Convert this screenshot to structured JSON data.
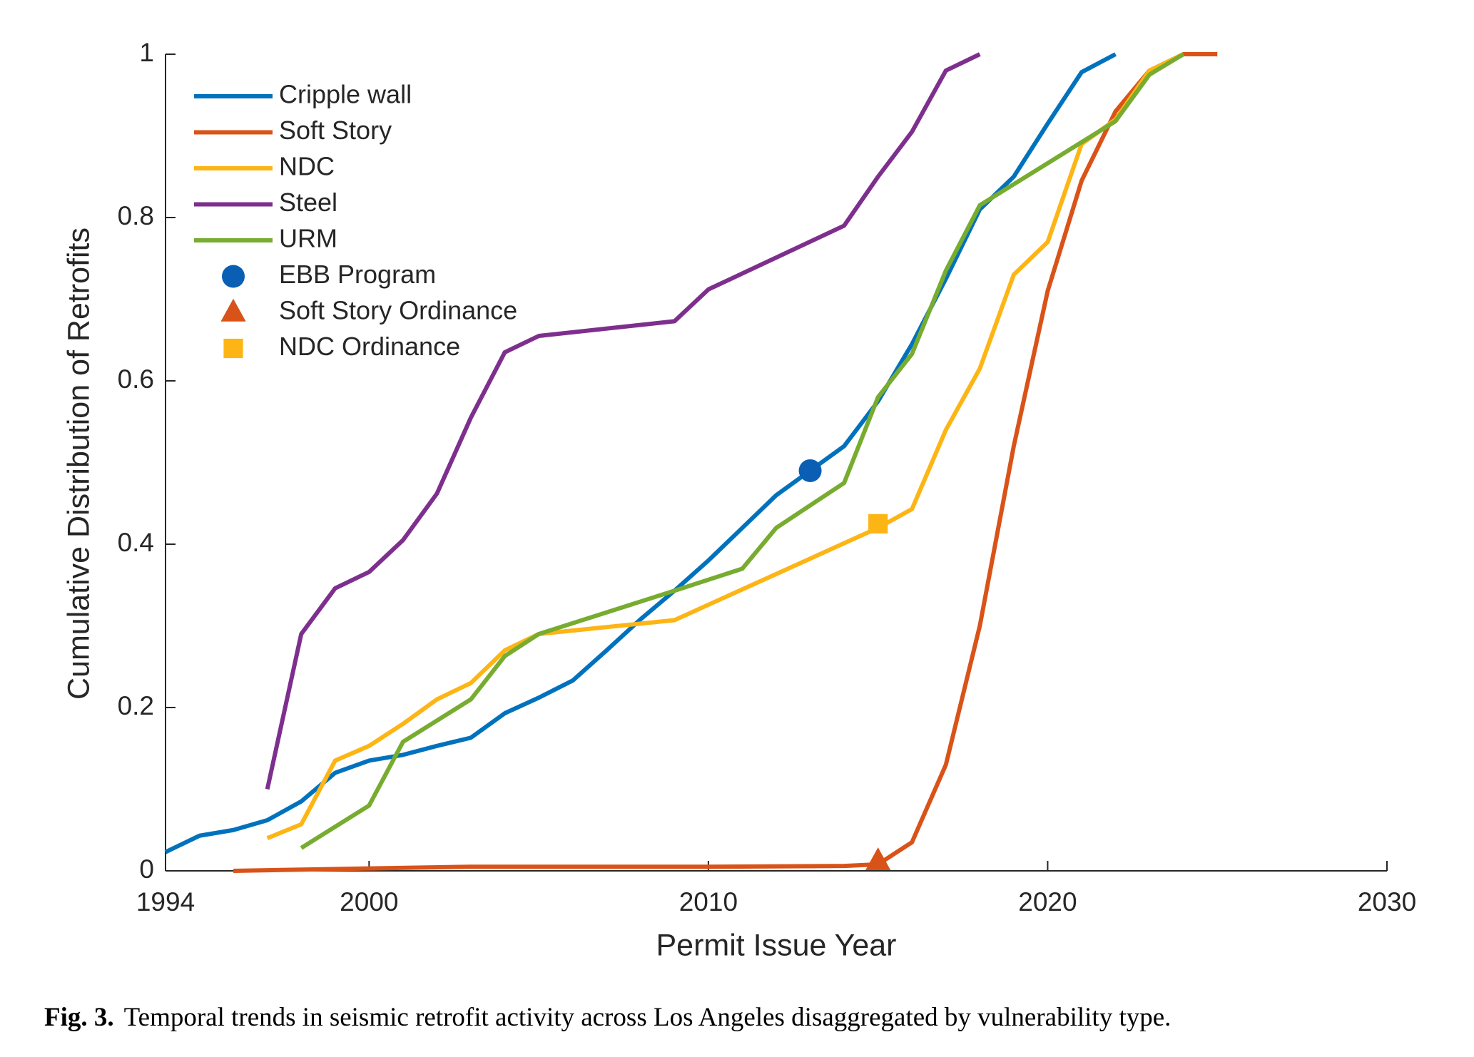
{
  "chart_data": {
    "type": "line",
    "xlabel": "Permit Issue Year",
    "ylabel": "Cumulative Distribution of Retrofits",
    "caption_label": "Fig. 3.",
    "caption": "Temporal trends in seismic retrofit activity across Los Angeles disaggregated by vulnerability type.",
    "xlim": [
      1994,
      2030
    ],
    "xticks": [
      1994,
      2000,
      2010,
      2020,
      2030
    ],
    "ylim": [
      0,
      1
    ],
    "yticks": [
      0,
      0.2,
      0.4,
      0.6,
      0.8,
      1
    ],
    "grid": false,
    "legend": "upper left",
    "series": [
      {
        "name": "Cripple wall",
        "color": "#0072bd",
        "marker": "line",
        "x": [
          1994,
          1995,
          1996,
          1997,
          1998,
          1999,
          2000,
          2001,
          2002,
          2003,
          2004,
          2005,
          2006,
          2007,
          2008,
          2009,
          2010,
          2011,
          2012,
          2013,
          2014,
          2015,
          2016,
          2017,
          2018,
          2019,
          2020,
          2021,
          2022
        ],
        "values": [
          0.023,
          0.043,
          0.05,
          0.062,
          0.085,
          0.12,
          0.135,
          0.142,
          0.153,
          0.163,
          0.193,
          0.212,
          0.233,
          0.27,
          0.308,
          0.343,
          0.38,
          0.42,
          0.46,
          0.49,
          0.52,
          0.575,
          0.645,
          0.725,
          0.81,
          0.85,
          0.915,
          0.978,
          1.0
        ]
      },
      {
        "name": "Soft Story",
        "color": "#d95319",
        "marker": "line",
        "x": [
          1996,
          2000,
          2003,
          2010,
          2014,
          2015,
          2016,
          2017,
          2018,
          2019,
          2020,
          2021,
          2022,
          2023,
          2024,
          2025
        ],
        "values": [
          0,
          0.003,
          0.005,
          0.005,
          0.006,
          0.008,
          0.035,
          0.13,
          0.3,
          0.52,
          0.71,
          0.845,
          0.93,
          0.98,
          1.0,
          1.0
        ]
      },
      {
        "name": "NDC",
        "color": "#fdb515",
        "marker": "line",
        "x": [
          1997,
          1998,
          1999,
          2000,
          2001,
          2002,
          2003,
          2004,
          2005,
          2009,
          2015,
          2016,
          2017,
          2018,
          2019,
          2020,
          2021,
          2022,
          2023,
          2024
        ],
        "values": [
          0.04,
          0.057,
          0.135,
          0.153,
          0.18,
          0.21,
          0.23,
          0.27,
          0.29,
          0.307,
          0.42,
          0.443,
          0.54,
          0.615,
          0.73,
          0.77,
          0.89,
          0.92,
          0.98,
          1.0
        ]
      },
      {
        "name": "Steel",
        "color": "#7e2f8e",
        "marker": "line",
        "x": [
          1997,
          1998,
          1999,
          2000,
          2001,
          2002,
          2003,
          2004,
          2005,
          2009,
          2010,
          2014,
          2015,
          2016,
          2017,
          2018
        ],
        "values": [
          0.1,
          0.29,
          0.346,
          0.366,
          0.405,
          0.462,
          0.555,
          0.635,
          0.655,
          0.673,
          0.712,
          0.79,
          0.85,
          0.905,
          0.98,
          1.0
        ]
      },
      {
        "name": "URM",
        "color": "#77ac30",
        "marker": "line",
        "x": [
          1998,
          2000,
          2001,
          2003,
          2004,
          2005,
          2009,
          2011,
          2012,
          2014,
          2015,
          2016,
          2017,
          2018,
          2022,
          2023,
          2024
        ],
        "values": [
          0.028,
          0.08,
          0.158,
          0.21,
          0.263,
          0.29,
          0.343,
          0.37,
          0.42,
          0.475,
          0.58,
          0.633,
          0.735,
          0.815,
          0.918,
          0.975,
          1.0
        ]
      },
      {
        "name": "EBB Program",
        "color": "#0a5fb4",
        "marker": "circle",
        "x": [
          2013
        ],
        "values": [
          0.49
        ]
      },
      {
        "name": "Soft Story Ordinance",
        "color": "#d95319",
        "marker": "triangle",
        "x": [
          2015
        ],
        "values": [
          0.012
        ]
      },
      {
        "name": "NDC Ordinance",
        "color": "#fdb515",
        "marker": "square",
        "x": [
          2015
        ],
        "values": [
          0.425
        ]
      }
    ]
  }
}
